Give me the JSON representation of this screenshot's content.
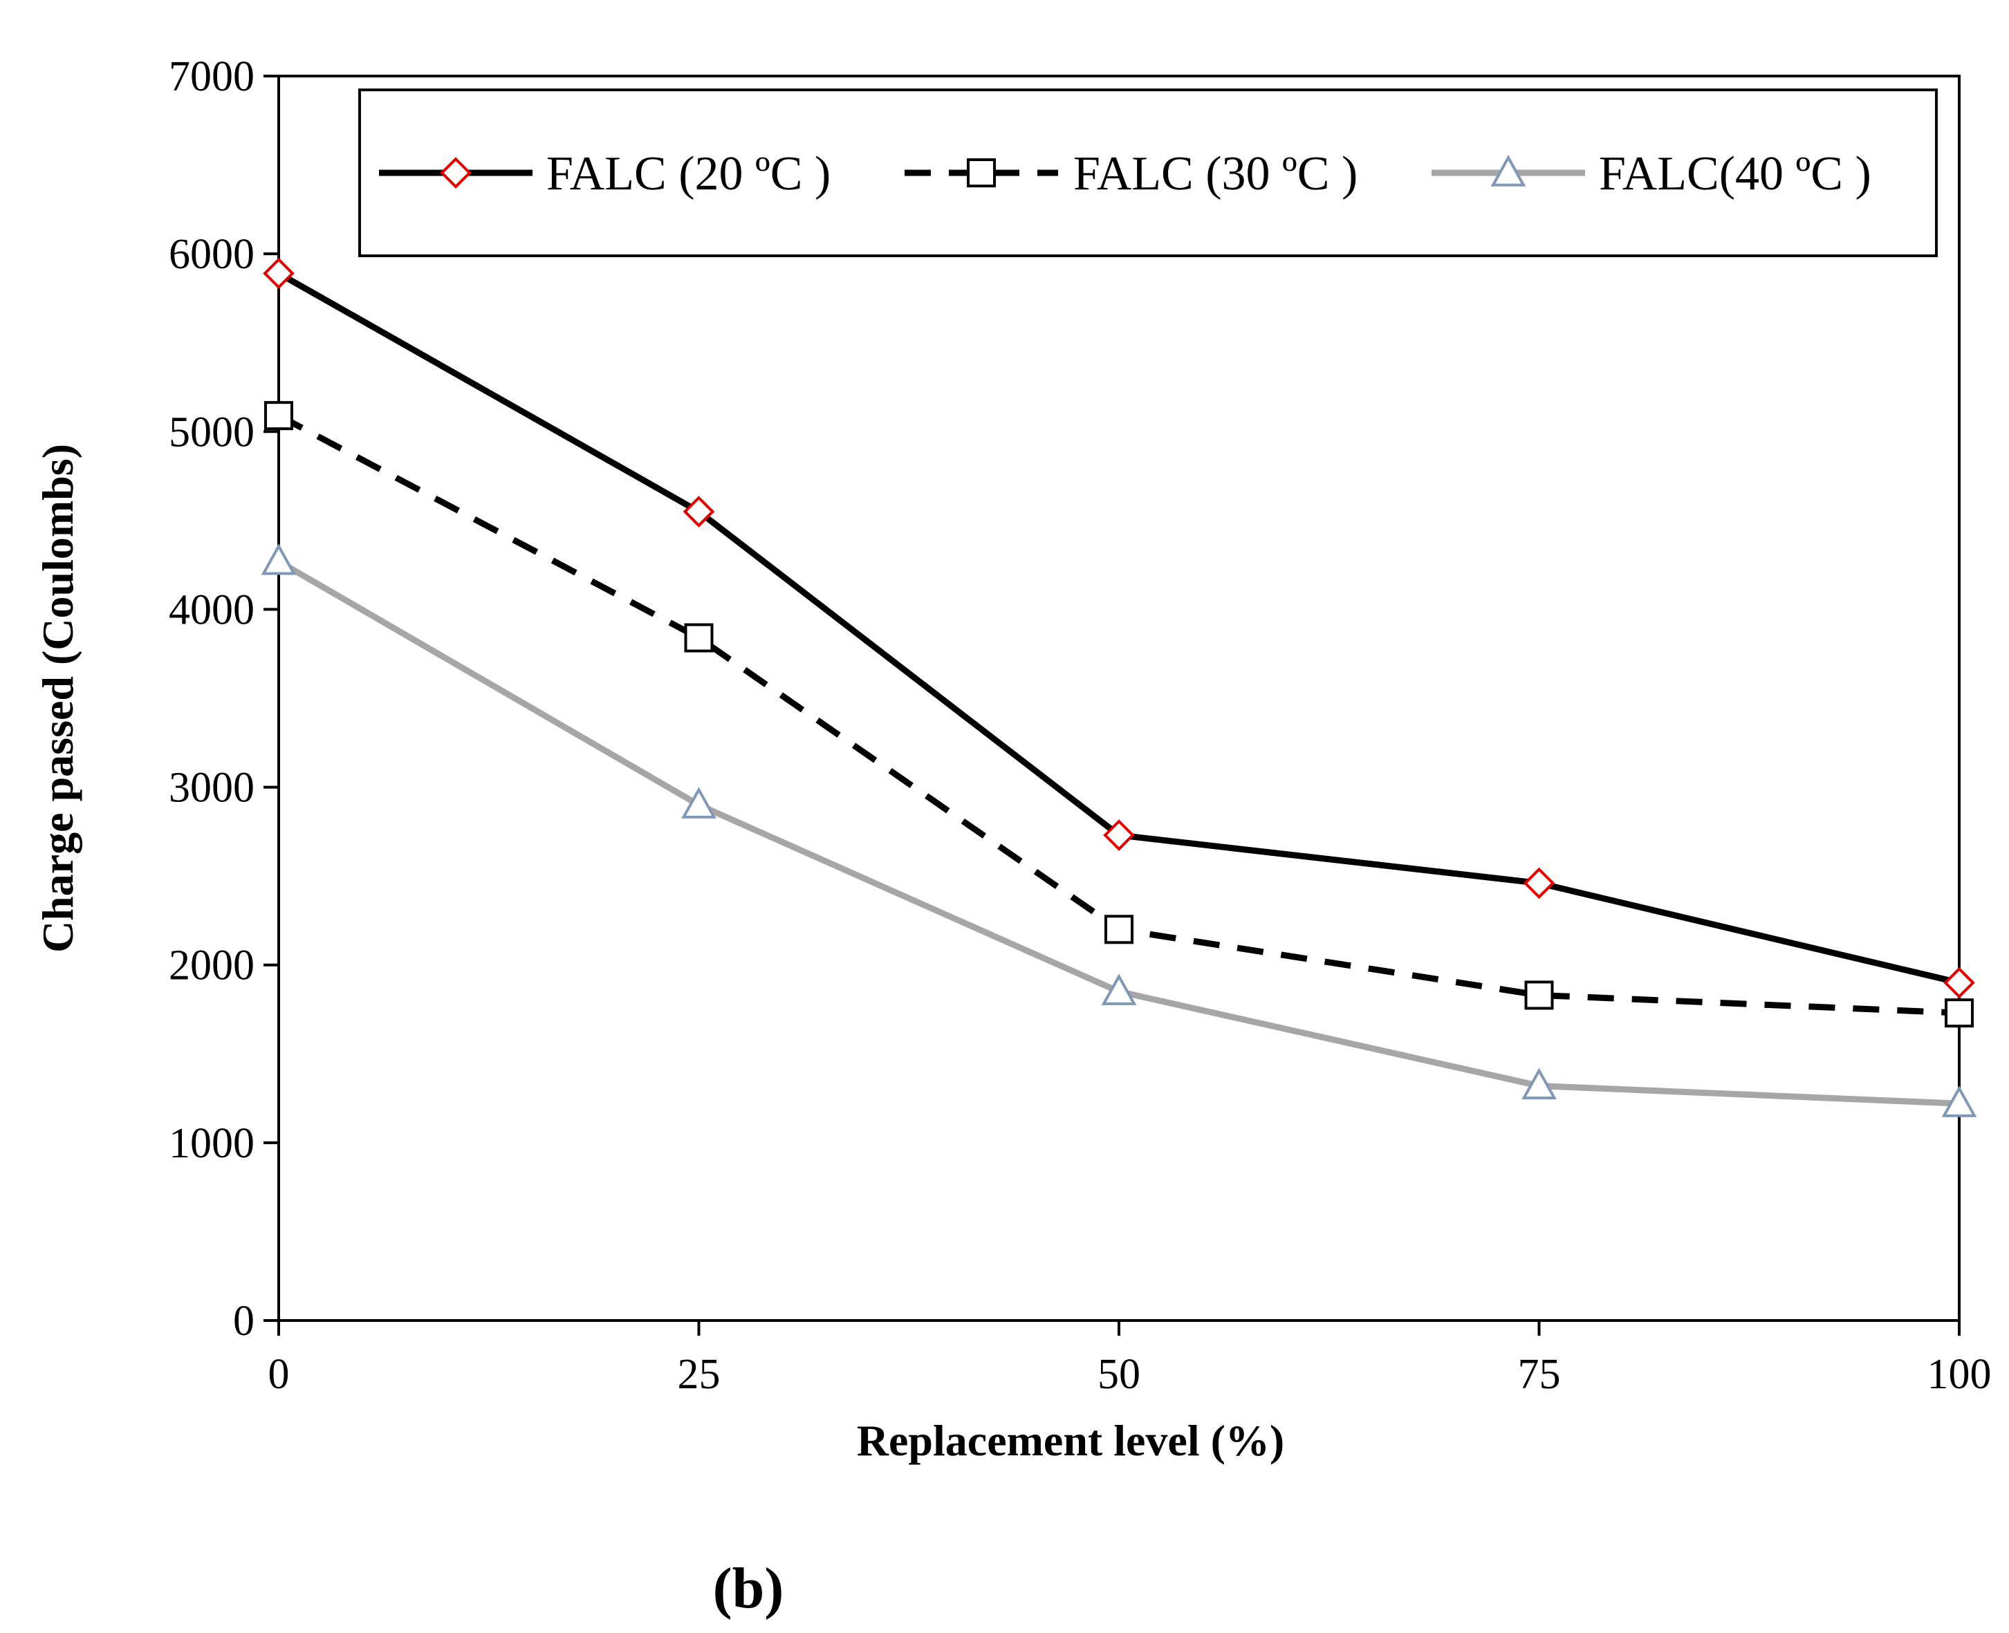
{
  "chart_data": {
    "type": "line",
    "title": "",
    "xlabel": "Replacement level (%)",
    "ylabel": "Charge passed (Coulombs)",
    "x": [
      0,
      25,
      50,
      75,
      100
    ],
    "x_ticks": [
      "0",
      "25",
      "50",
      "75",
      "100"
    ],
    "y_ticks": [
      "0",
      "1000",
      "2000",
      "3000",
      "4000",
      "5000",
      "6000",
      "7000"
    ],
    "xlim": [
      0,
      100
    ],
    "ylim": [
      0,
      7000
    ],
    "grid": false,
    "legend_position": "top",
    "panel_label": "(b)",
    "series": [
      {
        "name": "FALC (20 ºC )",
        "values": [
          5890,
          4550,
          2730,
          2460,
          1900
        ],
        "line_color": "#000000",
        "line_style": "solid",
        "marker": "diamond",
        "marker_color": "#e00000"
      },
      {
        "name": "FALC (30 ºC )",
        "values": [
          5090,
          3840,
          2200,
          1830,
          1730
        ],
        "line_color": "#000000",
        "line_style": "dashed",
        "marker": "square",
        "marker_color": "#000000"
      },
      {
        "name": "FALC(40 ºC )",
        "values": [
          4270,
          2900,
          1850,
          1320,
          1220
        ],
        "line_color": "#a6a6a6",
        "line_style": "solid",
        "marker": "triangle",
        "marker_color": "#7f98b5"
      }
    ]
  }
}
